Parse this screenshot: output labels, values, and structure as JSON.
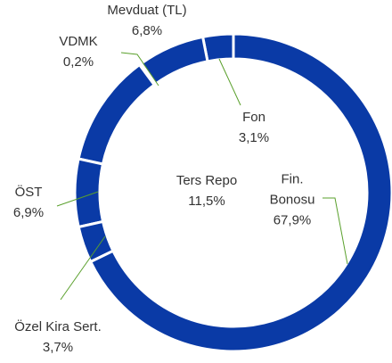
{
  "chart_data": {
    "type": "donut",
    "categories": [
      "Fin. Bonosu",
      "Özel Kira Sert.",
      "ÖST",
      "Ters Repo",
      "VDMK",
      "Mevduat (TL)",
      "Fon"
    ],
    "values": [
      67.9,
      3.7,
      6.9,
      11.5,
      0.2,
      6.8,
      3.1
    ],
    "value_labels": [
      "67,9%",
      "3,7%",
      "6,9%",
      "11,5%",
      "0,2%",
      "6,8%",
      "3,1%"
    ],
    "color": "#0a3aa6"
  }
}
